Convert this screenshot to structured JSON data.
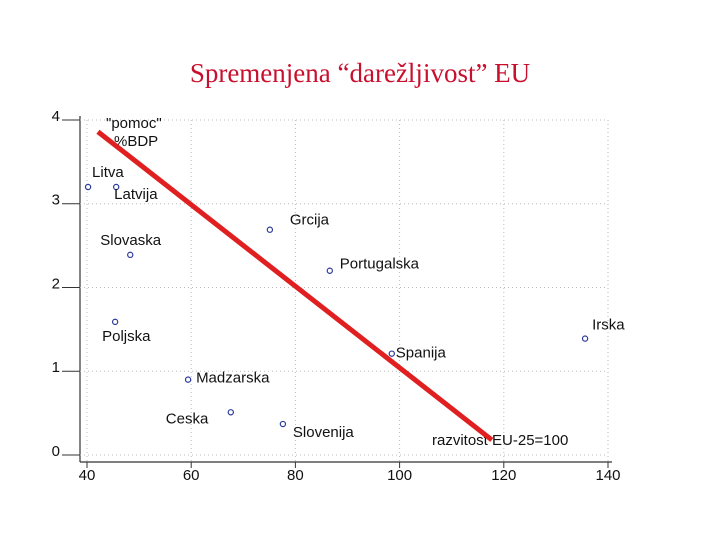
{
  "chart_data": {
    "type": "scatter",
    "title": "Spremenjena “darežljivost” EU",
    "ylabel": [
      "\"pomoc\"",
      "%BDP"
    ],
    "xlabel": "razvitost EU-25=100",
    "labels": [
      "Litva",
      "Latvija",
      "Slovaska",
      "Grcija",
      "Portugalska",
      "Poljska",
      "Irska",
      "Spanija",
      "Madzarska",
      "Ceska",
      "Slovenija"
    ],
    "x": [
      40.2,
      45.6,
      48.3,
      75.1,
      86.6,
      45.4,
      135.6,
      98.5,
      59.4,
      67.6,
      77.6
    ],
    "y": [
      3.2,
      3.2,
      2.39,
      2.69,
      2.2,
      1.59,
      1.39,
      1.21,
      0.9,
      0.51,
      0.37
    ],
    "color": "#2b3a9c",
    "trend_line": {
      "x": [
        42.1,
        117.7
      ],
      "y": [
        3.86,
        0.18
      ],
      "color": "#e02020"
    },
    "xlim": [
      40,
      140
    ],
    "ylim": [
      0,
      4
    ],
    "xticks": [
      40,
      60,
      80,
      100,
      120,
      140
    ],
    "yticks": [
      0,
      1,
      2,
      3,
      4
    ],
    "grid": true
  }
}
